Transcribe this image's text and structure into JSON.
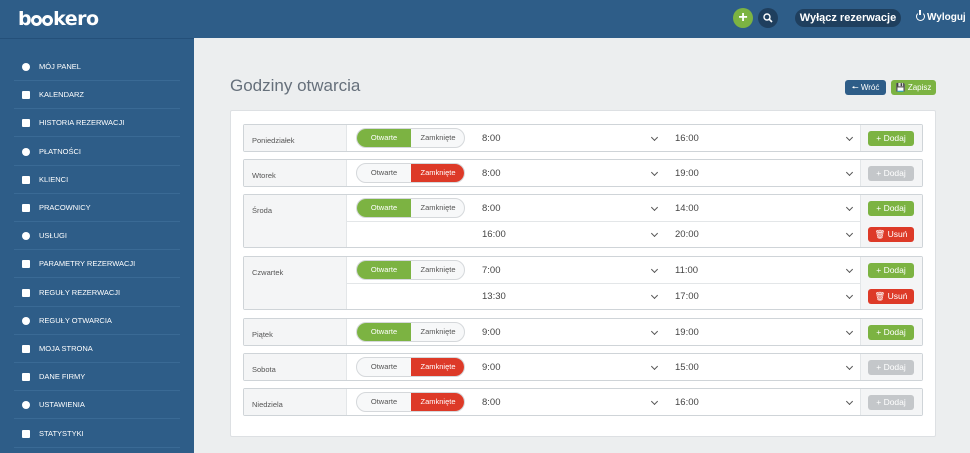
{
  "brand": {
    "logo_pre": "b",
    "logo_post": "kero"
  },
  "topbar": {
    "add_label": "+",
    "disable_bookings_label": "Wyłącz rezerwacje",
    "logout_label": "Wyloguj"
  },
  "sidebar": {
    "items": [
      {
        "label": "MÓJ PANEL",
        "icon": "home-icon"
      },
      {
        "label": "KALENDARZ",
        "icon": "calendar-icon"
      },
      {
        "label": "HISTORIA REZERWACJI",
        "icon": "history-icon"
      },
      {
        "label": "PŁATNOŚCI",
        "icon": "credit-card-icon"
      },
      {
        "label": "KLIENCI",
        "icon": "users-icon"
      },
      {
        "label": "PRACOWNICY",
        "icon": "staff-icon"
      },
      {
        "label": "USŁUGI",
        "icon": "services-icon"
      },
      {
        "label": "PARAMETRY REZERWACJI",
        "icon": "wrench-icon"
      },
      {
        "label": "REGUŁY REZERWACJI",
        "icon": "info-icon"
      },
      {
        "label": "REGUŁY OTWARCIA",
        "icon": "calendar-grid-icon"
      },
      {
        "label": "MOJA STRONA",
        "icon": "page-icon"
      },
      {
        "label": "DANE FIRMY",
        "icon": "document-icon"
      },
      {
        "label": "USTAWIENIA",
        "icon": "gear-icon"
      },
      {
        "label": "STATYSTYKI",
        "icon": "bar-chart-icon"
      }
    ]
  },
  "main": {
    "title": "Godziny otwarcia",
    "back_label": "Wróć",
    "save_label": "Zapisz",
    "open_label": "Otwarte",
    "closed_label": "Zamknięte",
    "add_label": "Dodaj",
    "delete_label": "Usuń",
    "days": [
      {
        "name": "Poniedziałek",
        "open": true,
        "ranges": [
          {
            "from": "8:00",
            "to": "16:00"
          }
        ]
      },
      {
        "name": "Wtorek",
        "open": false,
        "ranges": [
          {
            "from": "8:00",
            "to": "19:00"
          }
        ]
      },
      {
        "name": "Środa",
        "open": true,
        "ranges": [
          {
            "from": "8:00",
            "to": "14:00"
          },
          {
            "from": "16:00",
            "to": "20:00"
          }
        ]
      },
      {
        "name": "Czwartek",
        "open": true,
        "ranges": [
          {
            "from": "7:00",
            "to": "11:00"
          },
          {
            "from": "13:30",
            "to": "17:00"
          }
        ]
      },
      {
        "name": "Piątek",
        "open": true,
        "ranges": [
          {
            "from": "9:00",
            "to": "19:00"
          }
        ]
      },
      {
        "name": "Sobota",
        "open": false,
        "ranges": [
          {
            "from": "9:00",
            "to": "15:00"
          }
        ]
      },
      {
        "name": "Niedziela",
        "open": false,
        "ranges": [
          {
            "from": "8:00",
            "to": "16:00"
          }
        ]
      }
    ]
  },
  "colors": {
    "brand_blue": "#2e5d88",
    "green": "#7cb342",
    "red": "#dd3a28",
    "disabled": "#c4c7ca"
  }
}
